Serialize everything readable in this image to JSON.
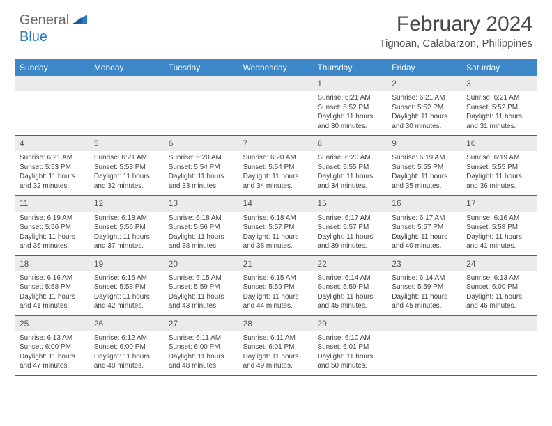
{
  "logo": {
    "general": "General",
    "blue": "Blue"
  },
  "title": "February 2024",
  "location": "Tignoan, Calabarzon, Philippines",
  "colors": {
    "header_bg": "#3b87c8",
    "header_text": "#ffffff",
    "daynum_bg": "#ebebeb",
    "row_border": "#2b6ca8",
    "logo_gray": "#6a6a6a",
    "logo_blue": "#2b78c2"
  },
  "dow": [
    "Sunday",
    "Monday",
    "Tuesday",
    "Wednesday",
    "Thursday",
    "Friday",
    "Saturday"
  ],
  "weeks": [
    [
      {
        "n": "",
        "sr": "",
        "ss": "",
        "dl": ""
      },
      {
        "n": "",
        "sr": "",
        "ss": "",
        "dl": ""
      },
      {
        "n": "",
        "sr": "",
        "ss": "",
        "dl": ""
      },
      {
        "n": "",
        "sr": "",
        "ss": "",
        "dl": ""
      },
      {
        "n": "1",
        "sr": "Sunrise: 6:21 AM",
        "ss": "Sunset: 5:52 PM",
        "dl": "Daylight: 11 hours and 30 minutes."
      },
      {
        "n": "2",
        "sr": "Sunrise: 6:21 AM",
        "ss": "Sunset: 5:52 PM",
        "dl": "Daylight: 11 hours and 30 minutes."
      },
      {
        "n": "3",
        "sr": "Sunrise: 6:21 AM",
        "ss": "Sunset: 5:52 PM",
        "dl": "Daylight: 11 hours and 31 minutes."
      }
    ],
    [
      {
        "n": "4",
        "sr": "Sunrise: 6:21 AM",
        "ss": "Sunset: 5:53 PM",
        "dl": "Daylight: 11 hours and 32 minutes."
      },
      {
        "n": "5",
        "sr": "Sunrise: 6:21 AM",
        "ss": "Sunset: 5:53 PM",
        "dl": "Daylight: 11 hours and 32 minutes."
      },
      {
        "n": "6",
        "sr": "Sunrise: 6:20 AM",
        "ss": "Sunset: 5:54 PM",
        "dl": "Daylight: 11 hours and 33 minutes."
      },
      {
        "n": "7",
        "sr": "Sunrise: 6:20 AM",
        "ss": "Sunset: 5:54 PM",
        "dl": "Daylight: 11 hours and 34 minutes."
      },
      {
        "n": "8",
        "sr": "Sunrise: 6:20 AM",
        "ss": "Sunset: 5:55 PM",
        "dl": "Daylight: 11 hours and 34 minutes."
      },
      {
        "n": "9",
        "sr": "Sunrise: 6:19 AM",
        "ss": "Sunset: 5:55 PM",
        "dl": "Daylight: 11 hours and 35 minutes."
      },
      {
        "n": "10",
        "sr": "Sunrise: 6:19 AM",
        "ss": "Sunset: 5:55 PM",
        "dl": "Daylight: 11 hours and 36 minutes."
      }
    ],
    [
      {
        "n": "11",
        "sr": "Sunrise: 6:19 AM",
        "ss": "Sunset: 5:56 PM",
        "dl": "Daylight: 11 hours and 36 minutes."
      },
      {
        "n": "12",
        "sr": "Sunrise: 6:18 AM",
        "ss": "Sunset: 5:56 PM",
        "dl": "Daylight: 11 hours and 37 minutes."
      },
      {
        "n": "13",
        "sr": "Sunrise: 6:18 AM",
        "ss": "Sunset: 5:56 PM",
        "dl": "Daylight: 11 hours and 38 minutes."
      },
      {
        "n": "14",
        "sr": "Sunrise: 6:18 AM",
        "ss": "Sunset: 5:57 PM",
        "dl": "Daylight: 11 hours and 38 minutes."
      },
      {
        "n": "15",
        "sr": "Sunrise: 6:17 AM",
        "ss": "Sunset: 5:57 PM",
        "dl": "Daylight: 11 hours and 39 minutes."
      },
      {
        "n": "16",
        "sr": "Sunrise: 6:17 AM",
        "ss": "Sunset: 5:57 PM",
        "dl": "Daylight: 11 hours and 40 minutes."
      },
      {
        "n": "17",
        "sr": "Sunrise: 6:16 AM",
        "ss": "Sunset: 5:58 PM",
        "dl": "Daylight: 11 hours and 41 minutes."
      }
    ],
    [
      {
        "n": "18",
        "sr": "Sunrise: 6:16 AM",
        "ss": "Sunset: 5:58 PM",
        "dl": "Daylight: 11 hours and 41 minutes."
      },
      {
        "n": "19",
        "sr": "Sunrise: 6:16 AM",
        "ss": "Sunset: 5:58 PM",
        "dl": "Daylight: 11 hours and 42 minutes."
      },
      {
        "n": "20",
        "sr": "Sunrise: 6:15 AM",
        "ss": "Sunset: 5:59 PM",
        "dl": "Daylight: 11 hours and 43 minutes."
      },
      {
        "n": "21",
        "sr": "Sunrise: 6:15 AM",
        "ss": "Sunset: 5:59 PM",
        "dl": "Daylight: 11 hours and 44 minutes."
      },
      {
        "n": "22",
        "sr": "Sunrise: 6:14 AM",
        "ss": "Sunset: 5:59 PM",
        "dl": "Daylight: 11 hours and 45 minutes."
      },
      {
        "n": "23",
        "sr": "Sunrise: 6:14 AM",
        "ss": "Sunset: 5:59 PM",
        "dl": "Daylight: 11 hours and 45 minutes."
      },
      {
        "n": "24",
        "sr": "Sunrise: 6:13 AM",
        "ss": "Sunset: 6:00 PM",
        "dl": "Daylight: 11 hours and 46 minutes."
      }
    ],
    [
      {
        "n": "25",
        "sr": "Sunrise: 6:13 AM",
        "ss": "Sunset: 6:00 PM",
        "dl": "Daylight: 11 hours and 47 minutes."
      },
      {
        "n": "26",
        "sr": "Sunrise: 6:12 AM",
        "ss": "Sunset: 6:00 PM",
        "dl": "Daylight: 11 hours and 48 minutes."
      },
      {
        "n": "27",
        "sr": "Sunrise: 6:11 AM",
        "ss": "Sunset: 6:00 PM",
        "dl": "Daylight: 11 hours and 48 minutes."
      },
      {
        "n": "28",
        "sr": "Sunrise: 6:11 AM",
        "ss": "Sunset: 6:01 PM",
        "dl": "Daylight: 11 hours and 49 minutes."
      },
      {
        "n": "29",
        "sr": "Sunrise: 6:10 AM",
        "ss": "Sunset: 6:01 PM",
        "dl": "Daylight: 11 hours and 50 minutes."
      },
      {
        "n": "",
        "sr": "",
        "ss": "",
        "dl": ""
      },
      {
        "n": "",
        "sr": "",
        "ss": "",
        "dl": ""
      }
    ]
  ]
}
